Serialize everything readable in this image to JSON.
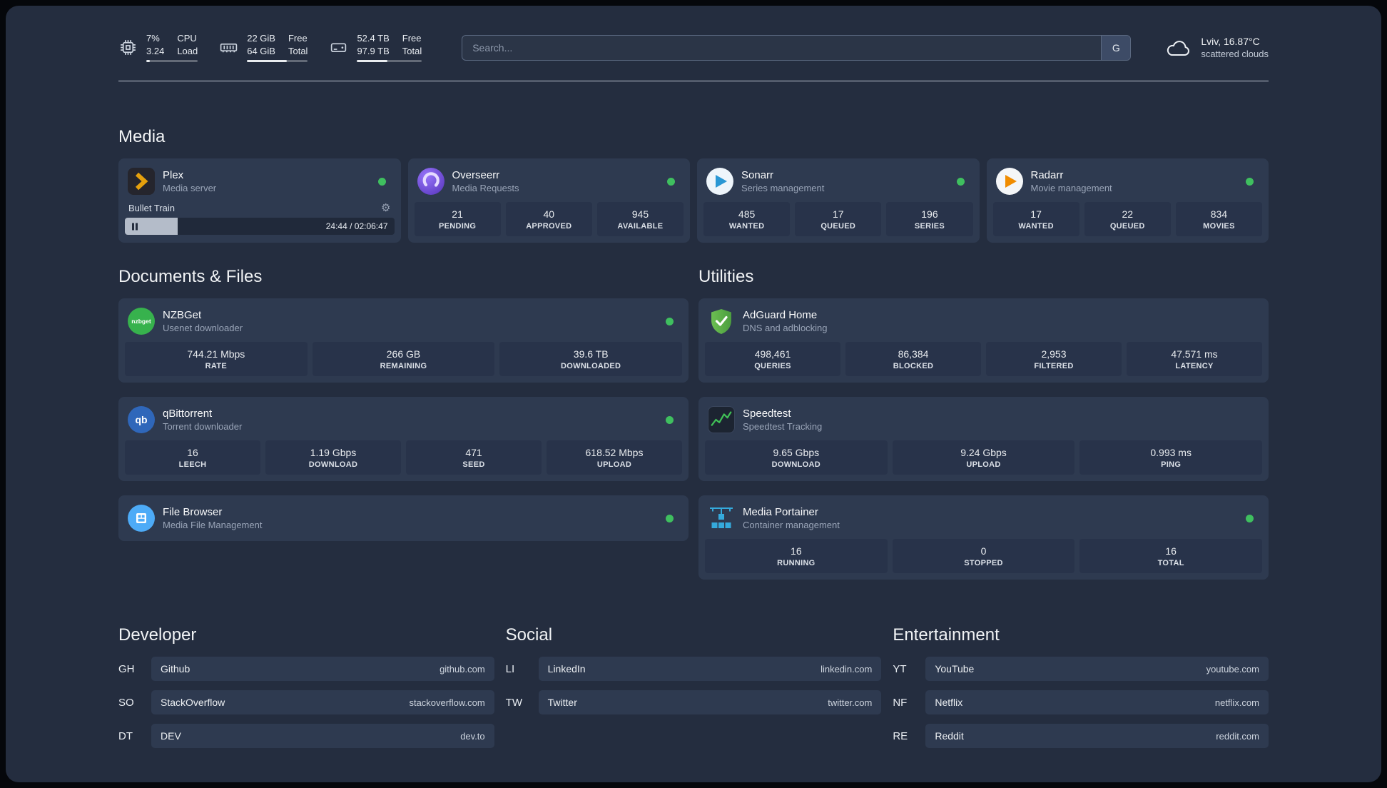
{
  "icons": {
    "gear": "⚙",
    "nzbget_text": "nzbget",
    "qb_text": "qb"
  },
  "palette": {
    "status_online": "#3fbf5f",
    "background": "#242d3f",
    "card": "#2e3a50",
    "tile": "#28334a"
  },
  "topbar": {
    "cpu": {
      "percent": "7%",
      "load": "3.24",
      "label_top": "CPU",
      "label_bottom": "Load",
      "bar_percent": 7
    },
    "ram": {
      "free": "22 GiB",
      "total": "64 GiB",
      "free_label": "Free",
      "total_label": "Total",
      "bar_percent": 66
    },
    "disk": {
      "free": "52.4 TB",
      "total": "97.9 TB",
      "free_label": "Free",
      "total_label": "Total",
      "bar_percent": 47
    },
    "search": {
      "placeholder": "Search...",
      "engine": "G"
    },
    "weather": {
      "location": "Lviv, 16.87°C",
      "condition": "scattered clouds"
    }
  },
  "media": {
    "title": "Media",
    "plex": {
      "name": "Plex",
      "desc": "Media server",
      "status": "online",
      "player": {
        "title": "Bullet Train",
        "time": "24:44 / 02:06:47",
        "progress_percent": 19.5
      }
    },
    "overseerr": {
      "name": "Overseerr",
      "desc": "Media Requests",
      "status": "online",
      "stats": [
        {
          "value": "21",
          "label": "PENDING"
        },
        {
          "value": "40",
          "label": "APPROVED"
        },
        {
          "value": "945",
          "label": "AVAILABLE"
        }
      ]
    },
    "sonarr": {
      "name": "Sonarr",
      "desc": "Series management",
      "status": "online",
      "stats": [
        {
          "value": "485",
          "label": "WANTED"
        },
        {
          "value": "17",
          "label": "QUEUED"
        },
        {
          "value": "196",
          "label": "SERIES"
        }
      ]
    },
    "radarr": {
      "name": "Radarr",
      "desc": "Movie management",
      "status": "online",
      "stats": [
        {
          "value": "17",
          "label": "WANTED"
        },
        {
          "value": "22",
          "label": "QUEUED"
        },
        {
          "value": "834",
          "label": "MOVIES"
        }
      ]
    }
  },
  "documents": {
    "title": "Documents & Files",
    "nzbget": {
      "name": "NZBGet",
      "desc": "Usenet downloader",
      "status": "online",
      "stats": [
        {
          "value": "744.21 Mbps",
          "label": "RATE"
        },
        {
          "value": "266 GB",
          "label": "REMAINING"
        },
        {
          "value": "39.6 TB",
          "label": "DOWNLOADED"
        }
      ]
    },
    "qbittorrent": {
      "name": "qBittorrent",
      "desc": "Torrent downloader",
      "status": "online",
      "stats": [
        {
          "value": "16",
          "label": "LEECH"
        },
        {
          "value": "1.19 Gbps",
          "label": "DOWNLOAD"
        },
        {
          "value": "471",
          "label": "SEED"
        },
        {
          "value": "618.52 Mbps",
          "label": "UPLOAD"
        }
      ]
    },
    "filebrowser": {
      "name": "File Browser",
      "desc": "Media File Management",
      "status": "online"
    }
  },
  "utilities": {
    "title": "Utilities",
    "adguard": {
      "name": "AdGuard Home",
      "desc": "DNS and adblocking",
      "stats": [
        {
          "value": "498,461",
          "label": "QUERIES"
        },
        {
          "value": "86,384",
          "label": "BLOCKED"
        },
        {
          "value": "2,953",
          "label": "FILTERED"
        },
        {
          "value": "47.571 ms",
          "label": "LATENCY"
        }
      ]
    },
    "speedtest": {
      "name": "Speedtest",
      "desc": "Speedtest Tracking",
      "stats": [
        {
          "value": "9.65 Gbps",
          "label": "DOWNLOAD"
        },
        {
          "value": "9.24 Gbps",
          "label": "UPLOAD"
        },
        {
          "value": "0.993 ms",
          "label": "PING"
        }
      ]
    },
    "portainer": {
      "name": "Media Portainer",
      "desc": "Container management",
      "status": "online",
      "stats": [
        {
          "value": "16",
          "label": "RUNNING"
        },
        {
          "value": "0",
          "label": "STOPPED"
        },
        {
          "value": "16",
          "label": "TOTAL"
        }
      ]
    }
  },
  "bookmarks": {
    "developer": {
      "title": "Developer",
      "links": [
        {
          "abbr": "GH",
          "name": "Github",
          "url": "github.com"
        },
        {
          "abbr": "SO",
          "name": "StackOverflow",
          "url": "stackoverflow.com"
        },
        {
          "abbr": "DT",
          "name": "DEV",
          "url": "dev.to"
        }
      ]
    },
    "social": {
      "title": "Social",
      "links": [
        {
          "abbr": "LI",
          "name": "LinkedIn",
          "url": "linkedin.com"
        },
        {
          "abbr": "TW",
          "name": "Twitter",
          "url": "twitter.com"
        }
      ]
    },
    "entertainment": {
      "title": "Entertainment",
      "links": [
        {
          "abbr": "YT",
          "name": "YouTube",
          "url": "youtube.com"
        },
        {
          "abbr": "NF",
          "name": "Netflix",
          "url": "netflix.com"
        },
        {
          "abbr": "RE",
          "name": "Reddit",
          "url": "reddit.com"
        }
      ]
    }
  }
}
